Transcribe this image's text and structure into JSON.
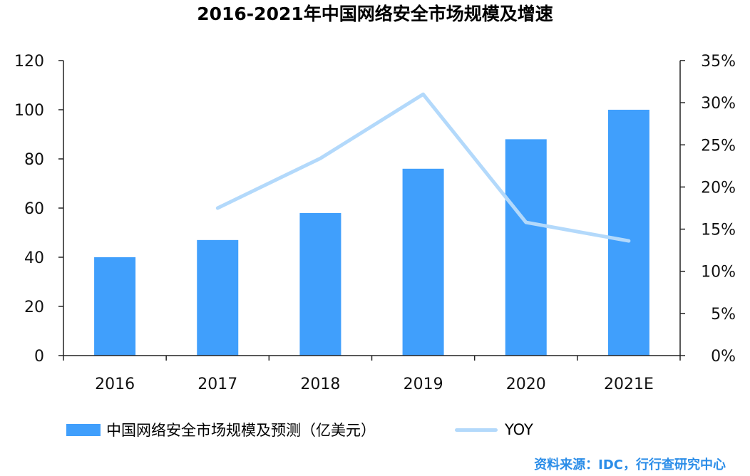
{
  "chart_data": {
    "type": "bar",
    "title": "2016-2021年中国网络安全市场规模及增速",
    "categories": [
      "2016",
      "2017",
      "2018",
      "2019",
      "2020",
      "2021E"
    ],
    "series": [
      {
        "name": "中国网络安全市场规模及预测（亿美元）",
        "type": "bar",
        "axis": "left",
        "values": [
          40,
          47,
          58,
          76,
          88,
          100
        ]
      },
      {
        "name": "YOY",
        "type": "line",
        "axis": "right",
        "values": [
          null,
          17.5,
          23.4,
          31.0,
          15.8,
          13.6
        ]
      }
    ],
    "y_left": {
      "ylim": [
        0,
        120
      ],
      "ticks": [
        "0",
        "20",
        "40",
        "60",
        "80",
        "100",
        "120"
      ]
    },
    "y_right": {
      "ylim": [
        0,
        35
      ],
      "ticks": [
        "0%",
        "5%",
        "10%",
        "15%",
        "20%",
        "25%",
        "30%",
        "35%"
      ]
    },
    "grid": false,
    "legend_position": "bottom",
    "colors": {
      "bar": "#409ffc",
      "line": "#b3d9fb",
      "source": "#2b8de8",
      "axis": "#222222"
    }
  },
  "source": "资料来源：IDC，行行查研究中心"
}
